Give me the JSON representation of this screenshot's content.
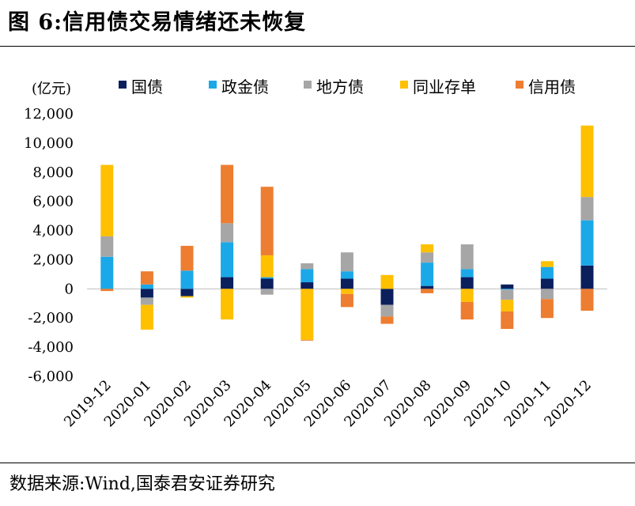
{
  "figure": {
    "title": "图 6:信用债交易情绪还未恢复",
    "source": "数据来源:Wind,国泰君安证券研究"
  },
  "chart_data": {
    "type": "bar",
    "stacked": true,
    "unit_label": "(亿元)",
    "categories": [
      "2019-12",
      "2020-01",
      "2020-02",
      "2020-03",
      "2020-04",
      "2020-05",
      "2020-06",
      "2020-07",
      "2020-08",
      "2020-09",
      "2020-10",
      "2020-11",
      "2020-12"
    ],
    "series": [
      {
        "name": "国债",
        "color": "#0b1f5c",
        "values": [
          0,
          -600,
          -500,
          800,
          700,
          450,
          700,
          -1100,
          200,
          800,
          300,
          700,
          1600
        ]
      },
      {
        "name": "政金债",
        "color": "#1aa8e8",
        "values": [
          2200,
          300,
          1250,
          2400,
          100,
          900,
          500,
          0,
          1600,
          550,
          -50,
          800,
          3100
        ]
      },
      {
        "name": "地方债",
        "color": "#a6a6a6",
        "values": [
          1400,
          -500,
          0,
          1300,
          -400,
          400,
          1300,
          -800,
          700,
          1700,
          -700,
          -700,
          1600
        ]
      },
      {
        "name": "同业存单",
        "color": "#ffc000",
        "values": [
          4900,
          -1700,
          -100,
          -2100,
          1500,
          -3500,
          -350,
          950,
          550,
          -900,
          -800,
          400,
          4900
        ]
      },
      {
        "name": "信用债",
        "color": "#ed7d31",
        "values": [
          -150,
          900,
          1700,
          4000,
          4700,
          -50,
          -900,
          -500,
          -300,
          -1200,
          -1200,
          -1300,
          -1500
        ]
      }
    ],
    "ylim": [
      -6000,
      12000
    ],
    "yticks": [
      -6000,
      -4000,
      -2000,
      0,
      2000,
      4000,
      6000,
      8000,
      10000,
      12000
    ],
    "ytick_labels": [
      "-6,000",
      "-4,000",
      "-2,000",
      "0",
      "2,000",
      "4,000",
      "6,000",
      "8,000",
      "10,000",
      "12,000"
    ],
    "grid": false,
    "legend_position": "top"
  }
}
